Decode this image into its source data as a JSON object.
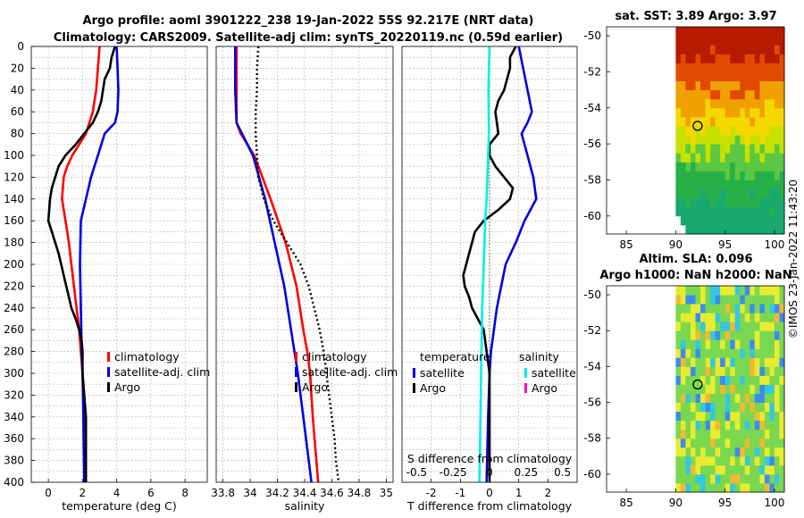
{
  "header": {
    "title_line1": "Argo profile: aoml 3901222_238 19-Jan-2022 55S 92.217E (NRT data)",
    "title_line2": "Climatology: CARS2009. Satellite-adj clim: synTS_20220119.nc (0.59d earlier)"
  },
  "footer": {
    "copyright": "©IMOS 23-Jan-2022 11:43:20"
  },
  "colors": {
    "climatology": "#ff0000",
    "satellite": "#0000dd",
    "argo": "#000000",
    "satellite_salinity": "#00f0f0",
    "argo_salinity_diff": "#ff00cc"
  },
  "chart_data": [
    {
      "type": "line",
      "title": "Temperature profile",
      "xlabel": "temperature (deg C)",
      "ylabel": "",
      "xlim": [
        -1,
        9.3
      ],
      "ylim": [
        400,
        0
      ],
      "x_ticks": [
        "0",
        "2",
        "4",
        "6",
        "8"
      ],
      "y_ticks": [
        "0",
        "20",
        "40",
        "60",
        "80",
        "100",
        "120",
        "140",
        "160",
        "180",
        "200",
        "220",
        "240",
        "260",
        "280",
        "300",
        "320",
        "340",
        "360",
        "380",
        "400"
      ],
      "legend": [
        "climatology",
        "satellite-adj. clim",
        "Argo"
      ],
      "series": [
        {
          "name": "climatology",
          "color": "red",
          "depth": [
            0,
            20,
            40,
            60,
            80,
            90,
            100,
            110,
            120,
            140,
            160,
            180,
            200,
            220,
            240,
            260,
            280,
            300,
            320,
            340,
            360,
            380,
            400
          ],
          "values": [
            3.0,
            2.9,
            2.8,
            2.6,
            2.2,
            1.8,
            1.4,
            1.1,
            0.9,
            0.8,
            1.0,
            1.2,
            1.35,
            1.5,
            1.65,
            1.8,
            1.9,
            2.0,
            2.05,
            2.1,
            2.15,
            2.15,
            2.2
          ]
        },
        {
          "name": "satellite-adj. clim",
          "color": "blue",
          "depth": [
            0,
            20,
            40,
            60,
            70,
            80,
            100,
            120,
            140,
            160,
            200,
            240,
            280,
            300,
            340,
            400
          ],
          "values": [
            4.0,
            4.05,
            4.1,
            4.05,
            3.9,
            3.3,
            2.9,
            2.5,
            2.2,
            1.9,
            1.85,
            1.9,
            1.95,
            2.0,
            2.05,
            2.1
          ]
        },
        {
          "name": "Argo",
          "color": "black",
          "depth": [
            0,
            10,
            20,
            30,
            40,
            50,
            60,
            70,
            80,
            90,
            100,
            110,
            120,
            130,
            140,
            150,
            160,
            170,
            180,
            190,
            200,
            210,
            220,
            230,
            240,
            250,
            260,
            270,
            280,
            290,
            300,
            320,
            340,
            360,
            380,
            400
          ],
          "values": [
            3.9,
            3.7,
            3.6,
            3.3,
            3.2,
            3.1,
            2.9,
            2.6,
            2.1,
            1.6,
            1.0,
            0.6,
            0.4,
            0.2,
            0.1,
            0.05,
            0.0,
            0.2,
            0.4,
            0.6,
            0.75,
            0.9,
            1.05,
            1.2,
            1.35,
            1.6,
            1.8,
            1.95,
            2.0,
            2.0,
            2.0,
            2.1,
            2.2,
            2.2,
            2.2,
            2.2
          ]
        }
      ]
    },
    {
      "type": "line",
      "title": "Salinity profile",
      "xlabel": "salinity",
      "ylabel": "",
      "xlim": [
        33.75,
        35.05
      ],
      "ylim": [
        400,
        0
      ],
      "x_ticks": [
        "33.8",
        "34",
        "34.2",
        "34.4",
        "34.6",
        "34.8",
        "35"
      ],
      "legend": [
        "climatology",
        "satellite-adj. clim",
        "Argo"
      ],
      "series": [
        {
          "name": "climatology",
          "color": "red",
          "depth": [
            0,
            40,
            70,
            80,
            100,
            140,
            180,
            220,
            260,
            280,
            300,
            340,
            400
          ],
          "values": [
            33.9,
            33.9,
            33.9,
            33.93,
            34.03,
            34.15,
            34.26,
            34.34,
            34.39,
            34.42,
            34.44,
            34.46,
            34.5
          ]
        },
        {
          "name": "satellite-adj. clim",
          "color": "blue",
          "depth": [
            0,
            40,
            70,
            80,
            100,
            140,
            180,
            220,
            260,
            300,
            340,
            380,
            400
          ],
          "values": [
            33.89,
            33.89,
            33.9,
            33.94,
            34.02,
            34.11,
            34.18,
            34.25,
            34.3,
            34.35,
            34.39,
            34.43,
            34.45
          ]
        },
        {
          "name": "Argo",
          "color": "black",
          "style": "dotted",
          "depth": [
            0,
            20,
            40,
            60,
            80,
            100,
            120,
            140,
            160,
            180,
            200,
            220,
            240,
            260,
            280,
            300,
            320,
            340,
            360,
            380,
            400
          ],
          "values": [
            34.06,
            34.05,
            34.05,
            34.04,
            34.04,
            34.05,
            34.06,
            34.1,
            34.17,
            34.27,
            34.37,
            34.43,
            34.47,
            34.51,
            34.54,
            34.56,
            34.58,
            34.6,
            34.62,
            34.63,
            34.65
          ]
        }
      ]
    },
    {
      "type": "line",
      "title": "Difference from climatology",
      "xlabel": "T difference from climatology",
      "secondary_xlabel": "S difference from climatology",
      "xlim": [
        -3,
        3
      ],
      "ylim": [
        400,
        0
      ],
      "x_ticks": [
        "-2",
        "-1",
        "0",
        "1",
        "2"
      ],
      "secondary_x_ticks": [
        "-0.5",
        "-0.25",
        "0",
        "0.25",
        "0.5"
      ],
      "legend": {
        "temperature_header": "temperature",
        "salinity_header": "salinity",
        "entries": [
          "satellite",
          "Argo",
          "satellite",
          "Argo"
        ]
      },
      "series": [
        {
          "name": "temperature satellite",
          "color": "blue",
          "depth": [
            0,
            20,
            40,
            60,
            70,
            80,
            90,
            100,
            110,
            120,
            140,
            160,
            180,
            200,
            220,
            240,
            280,
            300,
            340,
            400
          ],
          "values": [
            1.0,
            1.15,
            1.3,
            1.45,
            1.3,
            1.1,
            1.2,
            1.3,
            1.4,
            1.5,
            1.6,
            1.2,
            0.9,
            0.55,
            0.4,
            0.25,
            0.05,
            0.0,
            -0.05,
            -0.1
          ]
        },
        {
          "name": "temperature Argo",
          "color": "black",
          "depth": [
            0,
            10,
            20,
            30,
            40,
            50,
            60,
            70,
            80,
            90,
            100,
            110,
            120,
            130,
            140,
            150,
            160,
            170,
            180,
            190,
            200,
            210,
            220,
            230,
            240,
            250,
            260,
            280,
            300,
            340,
            400
          ],
          "values": [
            0.9,
            0.7,
            0.7,
            0.6,
            0.5,
            0.3,
            0.2,
            0.25,
            0.3,
            0.0,
            0.0,
            0.2,
            0.5,
            0.8,
            0.7,
            0.3,
            -0.2,
            -0.5,
            -0.6,
            -0.7,
            -0.8,
            -0.9,
            -0.85,
            -0.7,
            -0.6,
            -0.4,
            -0.2,
            -0.1,
            0.0,
            0.0,
            0.0
          ]
        },
        {
          "name": "salinity satellite",
          "color": "cyan",
          "depth": [
            0,
            40,
            80,
            100,
            140,
            160,
            200,
            240,
            280,
            320,
            360,
            400
          ],
          "values": [
            0.0,
            -0.04,
            -0.02,
            -0.05,
            -0.1,
            -0.15,
            -0.2,
            -0.25,
            -0.28,
            -0.3,
            -0.32,
            -0.35
          ]
        }
      ]
    }
  ],
  "maps": {
    "sst": {
      "title": "sat. SST: 3.89 Argo: 3.97",
      "x_ticks": [
        "85",
        "90",
        "95",
        "100"
      ],
      "y_ticks": [
        "-50",
        "-52",
        "-54",
        "-56",
        "-58",
        "-60"
      ],
      "xlim": [
        83,
        101
      ],
      "ylim": [
        -61,
        -49.5
      ],
      "marker": {
        "lon": 92.217,
        "lat": -55
      }
    },
    "sla": {
      "title_line1": "Altim. SLA: 0.096",
      "title_line2": "Argo h1000: NaN h2000: NaN",
      "x_ticks": [
        "85",
        "90",
        "95",
        "100"
      ],
      "y_ticks": [
        "-50",
        "-52",
        "-54",
        "-56",
        "-58",
        "-60"
      ],
      "xlim": [
        83,
        101
      ],
      "ylim": [
        -61,
        -49.5
      ],
      "marker": {
        "lon": 92.217,
        "lat": -55
      }
    }
  }
}
